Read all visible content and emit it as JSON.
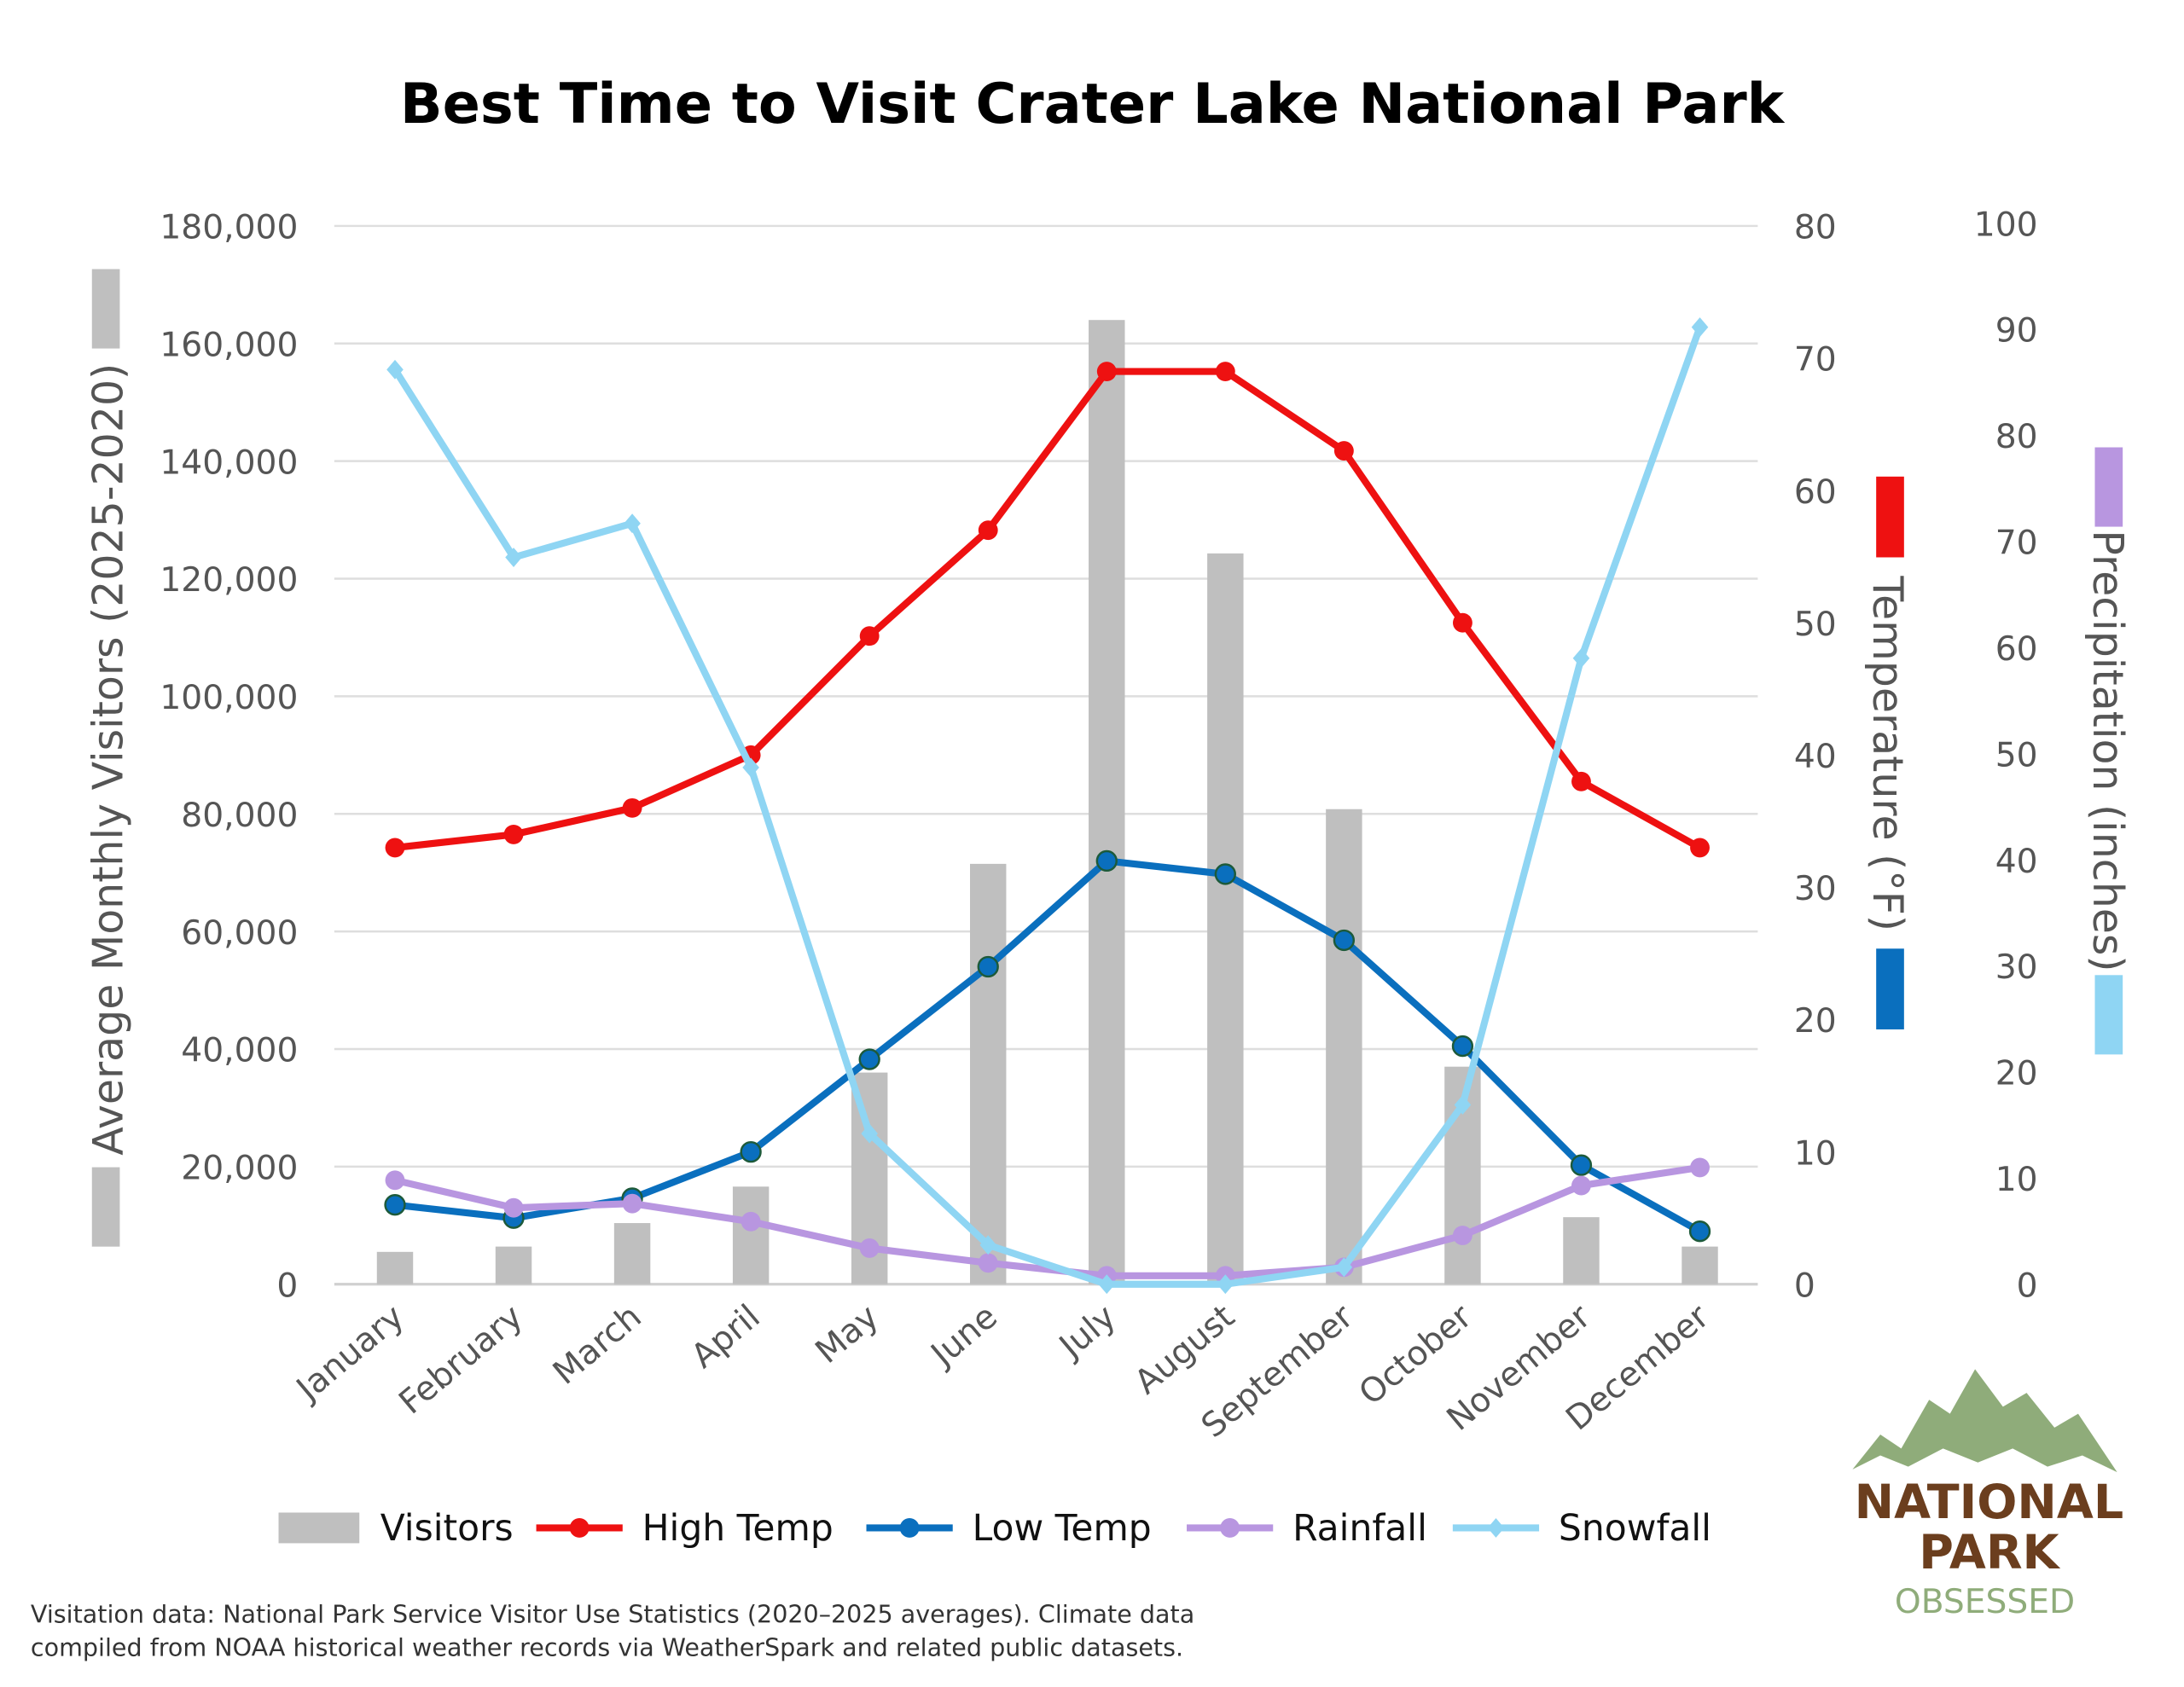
{
  "chart_data": {
    "type": "bar+line",
    "title": "Best Time to Visit Crater Lake National Park",
    "categories": [
      "January",
      "February",
      "March",
      "April",
      "May",
      "June",
      "July",
      "August",
      "September",
      "October",
      "November",
      "December"
    ],
    "axes": {
      "left": {
        "label": "Average Monthly Visitors (2025-2020)",
        "ylim": [
          0,
          180000
        ],
        "ticks": [
          "0",
          "20,000",
          "40,000",
          "60,000",
          "80,000",
          "100,000",
          "120,000",
          "140,000",
          "160,000",
          "180,000"
        ]
      },
      "right_temp": {
        "label": "Temperature (°F)",
        "ylim": [
          0,
          80
        ],
        "ticks": [
          "0",
          "10",
          "20",
          "30",
          "40",
          "50",
          "60",
          "70",
          "80"
        ]
      },
      "right_precip": {
        "label": "Precipitation (inches)",
        "ylim": [
          0,
          100
        ],
        "ticks": [
          "0",
          "10",
          "20",
          "30",
          "40",
          "50",
          "60",
          "70",
          "80",
          "90",
          "100"
        ]
      }
    },
    "grid": true,
    "legend_position": "bottom",
    "series": [
      {
        "name": "Visitors",
        "type": "bar",
        "axis": "left",
        "color": "#bfbfbf",
        "values": [
          5500,
          6400,
          10400,
          16600,
          36000,
          71500,
          164000,
          124300,
          80800,
          37000,
          11400,
          6400
        ]
      },
      {
        "name": "High Temp",
        "type": "line",
        "axis": "right_temp",
        "color": "#ee1111",
        "marker": "circle",
        "values": [
          33,
          34,
          36,
          40,
          49,
          57,
          69,
          69,
          63,
          50,
          38,
          33
        ]
      },
      {
        "name": "Low Temp",
        "type": "line",
        "axis": "right_temp",
        "color": "#0a6fbe",
        "marker": "circle",
        "values": [
          6,
          5,
          6.5,
          10,
          17,
          24,
          32,
          31,
          26,
          18,
          9,
          4
        ]
      },
      {
        "name": "Rainfall",
        "type": "line",
        "axis": "right_precip",
        "color": "#b896e0",
        "marker": "circle",
        "values": [
          9.8,
          7.2,
          7.6,
          5.9,
          3.4,
          2.0,
          0.8,
          0.8,
          1.6,
          4.6,
          9.3,
          11.0
        ]
      },
      {
        "name": "Snowfall",
        "type": "line",
        "axis": "right_precip",
        "color": "#8fd5f3",
        "marker": "diamond",
        "values": [
          86.2,
          68.5,
          71.7,
          48.7,
          14.2,
          3.7,
          0,
          0,
          1.6,
          16.9,
          59,
          90.2
        ]
      }
    ]
  },
  "footnote": {
    "line1": "Visitation data: National Park Service Visitor Use Statistics (2020–2025 averages). Climate data",
    "line2": "compiled from NOAA historical weather records via WeatherSpark and related public datasets."
  },
  "logo": {
    "line1": "NATIONAL",
    "line2": "PARK",
    "line3": "OBSESSED",
    "colors": {
      "mountains": "#8fac7a",
      "text": "#6b3e1e",
      "tagline": "#8fac7a"
    }
  }
}
